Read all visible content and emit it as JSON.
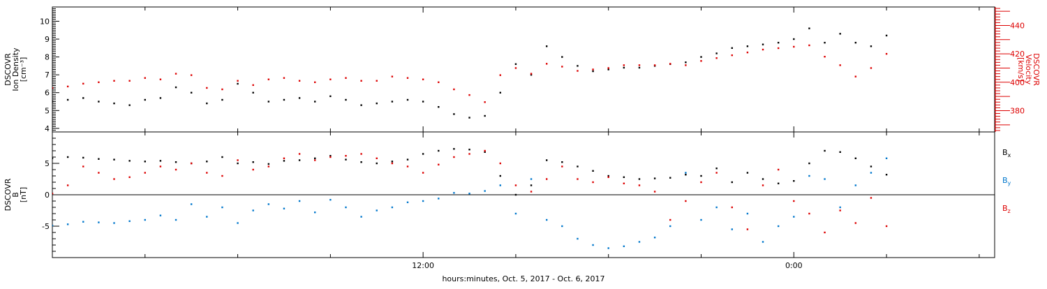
{
  "chart_data": [
    {
      "type": "scatter",
      "title": "",
      "xlabel": "hours:minutes, Oct.  5, 2017 - Oct.  6, 2017",
      "x_unit": "hours since Oct. 5, 2017 00:00",
      "xlim": [
        0,
        30.5
      ],
      "x_ticks": [
        {
          "x": 12,
          "label": "12:00"
        },
        {
          "x": 24,
          "label": "0:00"
        }
      ],
      "ylabel_left": [
        "DSCOVR",
        "Ion  Density",
        "[cm⁻³]"
      ],
      "ylim_left": [
        3.8,
        10.8
      ],
      "yticks_left": [
        "4",
        "5",
        "6",
        "7",
        "8",
        "9",
        "10"
      ],
      "ylabel_right": [
        "DSCOVR",
        "Velocity",
        "[km/s]"
      ],
      "ylim_right": [
        365,
        453
      ],
      "yticks_right": [
        "380",
        "400",
        "420",
        "440"
      ],
      "right_axis_color": "#dd0000",
      "grid": false,
      "series": [
        {
          "name": "",
          "axis": "left",
          "color": "#000000",
          "x": [
            0,
            0.5,
            1,
            1.5,
            2,
            2.5,
            3,
            3.5,
            4,
            4.5,
            5,
            5.5,
            6,
            6.5,
            7,
            7.5,
            8,
            8.5,
            9,
            9.5,
            10,
            10.5,
            11,
            11.5,
            12,
            12.5,
            13,
            13.5,
            14,
            14.5,
            15,
            15.5,
            16,
            16.5,
            17,
            17.5,
            18,
            18.5,
            19,
            19.5,
            20,
            20.5,
            21,
            21.5,
            22,
            22.5,
            23,
            23.5,
            24,
            24.5,
            25,
            25.5,
            26,
            26.5,
            27
          ],
          "y": [
            5.5,
            5.6,
            5.7,
            5.5,
            5.4,
            5.3,
            5.6,
            5.7,
            6.3,
            6.0,
            5.4,
            5.6,
            6.5,
            6.0,
            5.5,
            5.6,
            5.7,
            5.5,
            5.8,
            5.6,
            5.3,
            5.4,
            5.5,
            5.6,
            5.5,
            5.2,
            4.8,
            4.6,
            4.7,
            6.0,
            7.6,
            7.0,
            8.6,
            8.0,
            7.5,
            7.2,
            7.3,
            7.4,
            7.4,
            7.5,
            7.6,
            7.7,
            8.0,
            8.2,
            8.5,
            8.6,
            8.7,
            8.8,
            9.0,
            9.6,
            8.8,
            9.3,
            8.8,
            8.6,
            9.2
          ]
        },
        {
          "name": "",
          "axis": "right",
          "color": "#dd0000",
          "x": [
            0,
            0.5,
            1,
            1.5,
            2,
            2.5,
            3,
            3.5,
            4,
            4.5,
            5,
            5.5,
            6,
            6.5,
            7,
            7.5,
            8,
            8.5,
            9,
            9.5,
            10,
            10.5,
            11,
            11.5,
            12,
            12.5,
            13,
            13.5,
            14,
            14.5,
            15,
            15.5,
            16,
            16.5,
            17,
            17.5,
            18,
            18.5,
            19,
            19.5,
            20,
            20.5,
            21,
            21.5,
            22,
            22.5,
            23,
            23.5,
            24,
            24.5,
            25,
            25.5,
            26,
            26.5,
            27
          ],
          "y": [
            396,
            397,
            399,
            400,
            401,
            401,
            403,
            402,
            406,
            405,
            396,
            395,
            401,
            398,
            402,
            403,
            401,
            400,
            402,
            403,
            401,
            401,
            404,
            403,
            402,
            400,
            395,
            391,
            386,
            405,
            410,
            406,
            413,
            411,
            408,
            409,
            410,
            412,
            412,
            412,
            413,
            412,
            415,
            417,
            419,
            421,
            423,
            424,
            425,
            426,
            418,
            412,
            404,
            410,
            420
          ]
        }
      ]
    },
    {
      "type": "scatter",
      "title": "",
      "xlabel": "hours:minutes, Oct.  5, 2017 - Oct.  6, 2017",
      "x_unit": "hours since Oct. 5, 2017 00:00",
      "xlim": [
        0,
        30.5
      ],
      "ylabel": [
        "DSCOVR",
        "B",
        "[nT]"
      ],
      "ylim": [
        -10,
        10
      ],
      "yticks": [
        "-5",
        "0",
        "5"
      ],
      "zero_line": true,
      "grid": false,
      "series": [
        {
          "name": "Bx",
          "color": "#000000",
          "x": [
            0,
            0.5,
            1,
            1.5,
            2,
            2.5,
            3,
            3.5,
            4,
            4.5,
            5,
            5.5,
            6,
            6.5,
            7,
            7.5,
            8,
            8.5,
            9,
            9.5,
            10,
            10.5,
            11,
            11.5,
            12,
            12.5,
            13,
            13.5,
            14,
            14.5,
            15,
            15.5,
            16,
            16.5,
            17,
            17.5,
            18,
            18.5,
            19,
            19.5,
            20,
            20.5,
            21,
            21.5,
            22,
            22.5,
            23,
            23.5,
            24,
            24.5,
            25,
            25.5,
            26,
            26.5,
            27
          ],
          "y": [
            5.8,
            6.0,
            5.9,
            5.7,
            5.6,
            5.4,
            5.3,
            5.4,
            5.2,
            5.0,
            5.3,
            6.0,
            5.0,
            5.2,
            4.9,
            5.4,
            5.5,
            5.8,
            6.2,
            5.6,
            5.2,
            5.0,
            5.3,
            5.6,
            6.5,
            7.0,
            7.3,
            7.2,
            6.8,
            3.0,
            0.0,
            1.5,
            5.5,
            5.2,
            4.5,
            3.8,
            3.0,
            2.8,
            2.5,
            2.6,
            2.7,
            3.2,
            3.0,
            4.2,
            2.0,
            3.5,
            2.5,
            1.8,
            2.2,
            5.0,
            7.0,
            6.8,
            5.8,
            4.5,
            3.2
          ]
        },
        {
          "name": "By",
          "color": "#0077cc",
          "x": [
            0,
            0.5,
            1,
            1.5,
            2,
            2.5,
            3,
            3.5,
            4,
            4.5,
            5,
            5.5,
            6,
            6.5,
            7,
            7.5,
            8,
            8.5,
            9,
            9.5,
            10,
            10.5,
            11,
            11.5,
            12,
            12.5,
            13,
            13.5,
            14,
            14.5,
            15,
            15.5,
            16,
            16.5,
            17,
            17.5,
            18,
            18.5,
            19,
            19.5,
            20,
            20.5,
            21,
            21.5,
            22,
            22.5,
            23,
            23.5,
            24,
            24.5,
            25,
            25.5,
            26,
            26.5,
            27
          ],
          "y": [
            -4.9,
            -4.7,
            -4.3,
            -4.4,
            -4.5,
            -4.2,
            -4.0,
            -3.3,
            -4.0,
            -1.5,
            -3.5,
            -2.0,
            -4.5,
            -2.5,
            -1.5,
            -2.2,
            -1.0,
            -2.8,
            -0.8,
            -2.0,
            -3.5,
            -2.5,
            -2.0,
            -1.2,
            -1.0,
            -0.6,
            0.3,
            0.2,
            0.6,
            1.5,
            -3.0,
            2.5,
            -4.0,
            -5.0,
            -7.0,
            -8.0,
            -8.5,
            -8.2,
            -7.5,
            -6.8,
            -5.0,
            3.5,
            -4.0,
            -2.0,
            -5.5,
            -3.0,
            -7.5,
            -5.0,
            -3.5,
            3.0,
            2.5,
            -2.0,
            1.5,
            3.5,
            5.8
          ]
        },
        {
          "name": "Bz",
          "color": "#dd0000",
          "x": [
            0,
            0.5,
            1,
            1.5,
            2,
            2.5,
            3,
            3.5,
            4,
            4.5,
            5,
            5.5,
            6,
            6.5,
            7,
            7.5,
            8,
            8.5,
            9,
            9.5,
            10,
            10.5,
            11,
            11.5,
            12,
            12.5,
            13,
            13.5,
            14,
            14.5,
            15,
            15.5,
            16,
            16.5,
            17,
            17.5,
            18,
            18.5,
            19,
            19.5,
            20,
            20.5,
            21,
            21.5,
            22,
            22.5,
            23,
            23.5,
            24,
            24.5,
            25,
            25.5,
            26,
            26.5,
            27
          ],
          "y": [
            0.2,
            1.5,
            4.5,
            3.5,
            2.5,
            2.8,
            3.5,
            4.5,
            4.0,
            5.0,
            3.5,
            3.0,
            5.5,
            4.0,
            4.5,
            5.8,
            6.5,
            5.5,
            6.0,
            6.2,
            6.5,
            5.8,
            5.0,
            4.5,
            3.5,
            4.8,
            6.0,
            6.5,
            7.0,
            5.0,
            1.5,
            0.5,
            2.5,
            4.5,
            2.5,
            2.0,
            2.8,
            1.8,
            1.5,
            0.5,
            -4.0,
            -1.0,
            2.0,
            3.5,
            -2.0,
            -5.5,
            1.5,
            4.0,
            -1.0,
            -3.0,
            -6.0,
            -2.5,
            -4.5,
            -0.5,
            -5.0
          ]
        }
      ],
      "legend": [
        {
          "symbol": "B",
          "subscript": "x",
          "color": "#000000"
        },
        {
          "symbol": "B",
          "subscript": "y",
          "color": "#0077cc"
        },
        {
          "symbol": "B",
          "subscript": "z",
          "color": "#dd0000"
        }
      ],
      "legend_placement": "right"
    }
  ]
}
